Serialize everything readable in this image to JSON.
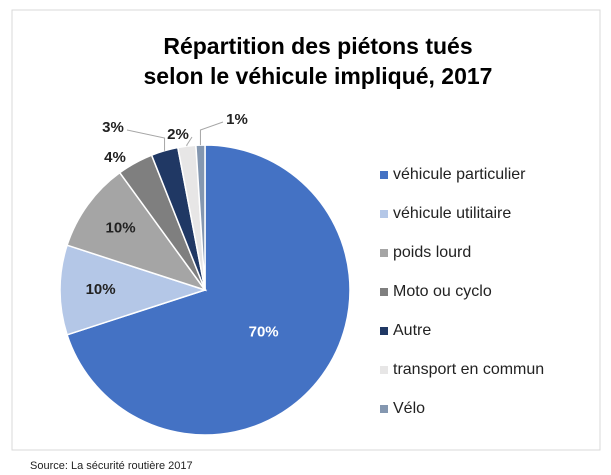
{
  "chart_data": {
    "type": "pie",
    "title": [
      "Répartition des piétons tués",
      "selon le véhicule impliqué, 2017"
    ],
    "categories": [
      "véhicule particulier",
      "véhicule utilitaire",
      "poids lourd",
      "Moto ou cyclo",
      "Autre",
      "transport en commun",
      "Vélo"
    ],
    "values": [
      70,
      10,
      10,
      4,
      3,
      2,
      1
    ],
    "value_labels": [
      "70%",
      "10%",
      "10%",
      "4%",
      "3%",
      "2%",
      "1%"
    ],
    "colors": [
      "#4472c4",
      "#b4c7e7",
      "#a5a5a5",
      "#7f7f7f",
      "#203864",
      "#e7e6e6",
      "#8497b0"
    ],
    "legend": "right",
    "source": "Source: La sécurité routière 2017"
  }
}
